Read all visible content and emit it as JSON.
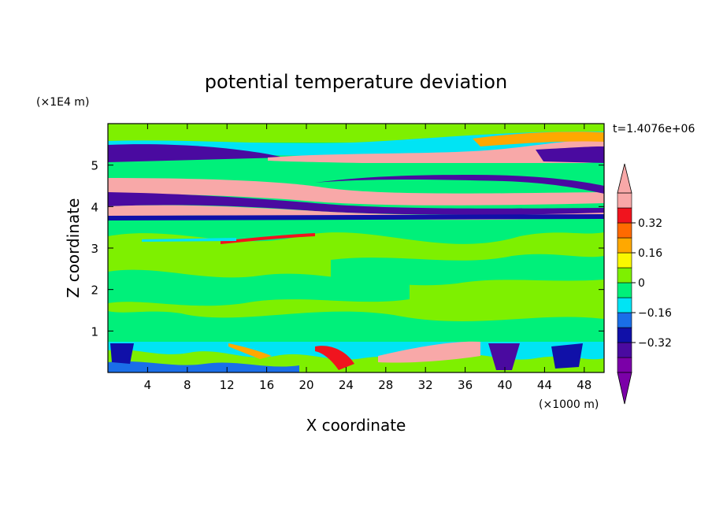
{
  "chart_data": {
    "type": "heatmap",
    "title": "potential temperature deviation",
    "xlabel": "X coordinate",
    "ylabel": "Z coordinate",
    "x_unit": "(×1000 m)",
    "y_unit": "(×1E4 m)",
    "time_label": "t=1.4076e+06",
    "xlim": [
      0,
      50
    ],
    "ylim": [
      0,
      6
    ],
    "x_ticks": [
      4,
      8,
      12,
      16,
      20,
      24,
      28,
      32,
      36,
      40,
      44,
      48
    ],
    "y_ticks": [
      1,
      2,
      3,
      4,
      5
    ],
    "colorbar": {
      "levels": [
        -0.48,
        -0.4,
        -0.32,
        -0.24,
        -0.16,
        -0.08,
        0,
        0.08,
        0.16,
        0.24,
        0.32,
        0.4,
        0.48
      ],
      "tick_values": [
        -0.32,
        -0.16,
        0,
        0.16,
        0.32
      ],
      "tick_labels": [
        "−0.32",
        "−0.16",
        "0",
        "0.16",
        "0.32"
      ],
      "colors": [
        "#7b00a8",
        "#4a0aa0",
        "#1010a8",
        "#1a6ee8",
        "#00e4f4",
        "#00f07a",
        "#7ef000",
        "#faf800",
        "#ffa800",
        "#ff6a00",
        "#f0141e",
        "#f8a8a8"
      ],
      "below_color": "#7b00a8",
      "above_color": "#f8a8a8"
    }
  }
}
